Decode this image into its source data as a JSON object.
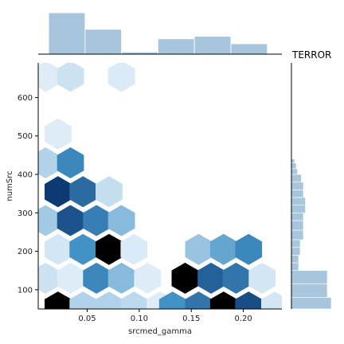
{
  "chart_data": {
    "type": "heatmap",
    "subtype": "hexbin-jointplot",
    "side_title": "TERROR",
    "xlabel": "srcmed_gamma",
    "ylabel": "numSrc",
    "xlim": [
      0.003,
      0.237
    ],
    "ylim": [
      50,
      690
    ],
    "xticks": [
      0.05,
      0.1,
      0.15,
      0.2
    ],
    "xtick_labels": [
      "0.05",
      "0.10",
      "0.15",
      "0.20"
    ],
    "yticks": [
      100,
      200,
      300,
      400,
      500,
      600
    ],
    "ytick_labels": [
      "100",
      "200",
      "300",
      "400",
      "500",
      "600"
    ],
    "grid": false,
    "hex_cells": [
      {
        "x": 0.01,
        "y": 655,
        "density": 0.05
      },
      {
        "x": 0.034,
        "y": 655,
        "density": 0.1
      },
      {
        "x": 0.083,
        "y": 655,
        "density": 0.06
      },
      {
        "x": 0.022,
        "y": 505,
        "density": 0.05
      },
      {
        "x": 0.01,
        "y": 430,
        "density": 0.18
      },
      {
        "x": 0.034,
        "y": 430,
        "density": 0.55
      },
      {
        "x": 0.022,
        "y": 355,
        "density": 0.95
      },
      {
        "x": 0.046,
        "y": 355,
        "density": 0.7
      },
      {
        "x": 0.071,
        "y": 355,
        "density": 0.12
      },
      {
        "x": 0.01,
        "y": 280,
        "density": 0.22
      },
      {
        "x": 0.034,
        "y": 280,
        "density": 0.82
      },
      {
        "x": 0.059,
        "y": 280,
        "density": 0.6
      },
      {
        "x": 0.083,
        "y": 280,
        "density": 0.3
      },
      {
        "x": 0.022,
        "y": 205,
        "density": 0.08
      },
      {
        "x": 0.046,
        "y": 205,
        "density": 0.5
      },
      {
        "x": 0.071,
        "y": 205,
        "density": 1.0
      },
      {
        "x": 0.095,
        "y": 205,
        "density": 0.06
      },
      {
        "x": 0.01,
        "y": 130,
        "density": 0.1
      },
      {
        "x": 0.034,
        "y": 130,
        "density": 0.05
      },
      {
        "x": 0.059,
        "y": 130,
        "density": 0.55
      },
      {
        "x": 0.083,
        "y": 130,
        "density": 0.3
      },
      {
        "x": 0.108,
        "y": 130,
        "density": 0.05
      },
      {
        "x": 0.022,
        "y": 55,
        "density": 1.0
      },
      {
        "x": 0.046,
        "y": 55,
        "density": 0.18
      },
      {
        "x": 0.071,
        "y": 55,
        "density": 0.18
      },
      {
        "x": 0.095,
        "y": 55,
        "density": 0.15
      },
      {
        "x": 0.12,
        "y": 55,
        "density": 0.05
      },
      {
        "x": 0.01,
        "y": -20,
        "density": 0.92
      },
      {
        "x": 0.083,
        "y": -20,
        "density": 0.05
      },
      {
        "x": 0.108,
        "y": -20,
        "density": 0.05
      },
      {
        "x": 0.157,
        "y": 205,
        "density": 0.25
      },
      {
        "x": 0.181,
        "y": 205,
        "density": 0.4
      },
      {
        "x": 0.205,
        "y": 205,
        "density": 0.55
      },
      {
        "x": 0.144,
        "y": 130,
        "density": 1.0
      },
      {
        "x": 0.169,
        "y": 130,
        "density": 0.75
      },
      {
        "x": 0.193,
        "y": 130,
        "density": 0.65
      },
      {
        "x": 0.218,
        "y": 130,
        "density": 0.08
      },
      {
        "x": 0.132,
        "y": 55,
        "density": 0.5
      },
      {
        "x": 0.157,
        "y": 55,
        "density": 0.65
      },
      {
        "x": 0.181,
        "y": 55,
        "density": 1.0
      },
      {
        "x": 0.205,
        "y": 55,
        "density": 0.85
      },
      {
        "x": 0.23,
        "y": 55,
        "density": 0.08
      }
    ],
    "top_histogram": {
      "bin_edges": [
        0.013,
        0.048,
        0.083,
        0.118,
        0.153,
        0.188,
        0.223
      ],
      "heights": [
        1.0,
        0.6,
        0.05,
        0.37,
        0.43,
        0.25
      ]
    },
    "right_histogram": {
      "bin_edges": [
        50,
        80,
        115,
        150,
        170,
        190,
        210,
        230,
        255,
        280,
        300,
        320,
        340,
        360,
        380,
        400,
        415,
        430,
        440
      ],
      "widths": [
        1.0,
        0.9,
        0.9,
        0.18,
        0.18,
        0.22,
        0.22,
        0.3,
        0.3,
        0.3,
        0.35,
        0.35,
        0.3,
        0.3,
        0.25,
        0.15,
        0.12,
        0.08
      ]
    },
    "colors": {
      "hist_fill": "#a7c6de",
      "hist_edge": "#ffffff",
      "hex_low": "#eff6fc",
      "hex_high": "#08306b",
      "hex_max": "#000000",
      "axis": "#000000"
    }
  }
}
